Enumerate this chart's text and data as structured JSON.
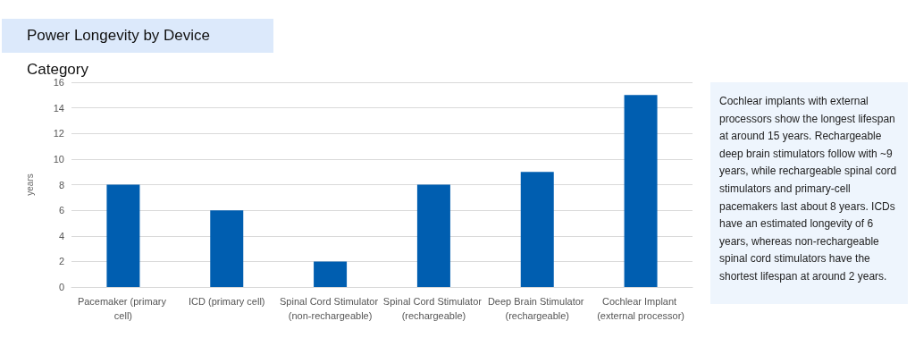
{
  "chart_data": {
    "type": "bar",
    "title": "Power Longevity by Device Category",
    "ylabel": "years",
    "categories": [
      "Pacemaker (primary cell)",
      "ICD (primary cell)",
      "Spinal Cord Stimulator (non-rechargeable)",
      "Spinal Cord Stimulator (rechargeable)",
      "Deep Brain Stimulator (rechargeable)",
      "Cochlear Implant (external processor)"
    ],
    "values": [
      8,
      6,
      2,
      8,
      9,
      15
    ],
    "color": "#005eb0",
    "ylim": [
      0,
      16
    ],
    "yticks": [
      0,
      2,
      4,
      6,
      8,
      10,
      12,
      14,
      16
    ],
    "grid": "y",
    "annotations": [
      "Cochlear implants with external processors show the longest lifespan at around 15 years. Rechargeable deep brain stimulators follow with ~9 years, while rechargeable spinal cord stimulators and primary-cell pacemakers last about 8 years. ICDs have an estimated longevity of 6 years, whereas non-rechargeable spinal cord stimulators have the shortest lifespan at around 2 years."
    ]
  }
}
